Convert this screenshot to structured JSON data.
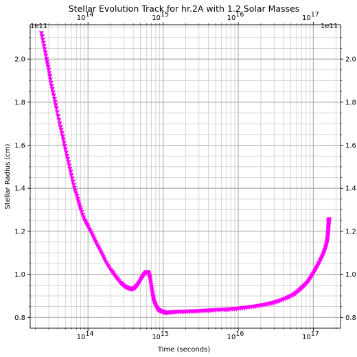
{
  "chart_data": {
    "type": "scatter",
    "title": "Stellar Evolution Track for hr.2A with 1.2 Solar Masses",
    "xlabel": "Time (seconds)",
    "ylabel": "Stellar Radius (cm)",
    "x_scale": "log",
    "xlim": [
      17000000000000.0,
      2.3e+17
    ],
    "ylim": [
      0.75,
      2.16
    ],
    "y_multiplier_label": "1e11",
    "x_ticks": [
      {
        "value": 100000000000000.0,
        "base": "10",
        "exp": "14"
      },
      {
        "value": 1000000000000000.0,
        "base": "10",
        "exp": "15"
      },
      {
        "value": 1e+16,
        "base": "10",
        "exp": "16"
      },
      {
        "value": 1e+17,
        "base": "10",
        "exp": "17"
      }
    ],
    "y_ticks": [
      {
        "value": 0.8,
        "label": "0.8"
      },
      {
        "value": 1.0,
        "label": "1.0"
      },
      {
        "value": 1.2,
        "label": "1.2"
      },
      {
        "value": 1.4,
        "label": "1.4"
      },
      {
        "value": 1.6,
        "label": "1.6"
      },
      {
        "value": 1.8,
        "label": "1.8"
      },
      {
        "value": 2.0,
        "label": "2.0"
      }
    ],
    "grid": true,
    "marker": "triangle-down",
    "color": "#ff00ff",
    "series": [
      {
        "x": [
          24000000000000.0,
          26000000000000.0,
          28000000000000.0,
          30000000000000.0,
          32000000000000.0,
          35000000000000.0,
          38000000000000.0,
          42000000000000.0,
          46000000000000.0,
          50000000000000.0,
          55000000000000.0,
          60000000000000.0,
          66000000000000.0,
          73000000000000.0,
          80000000000000.0,
          90000000000000.0,
          100000000000000.0,
          115000000000000.0,
          130000000000000.0,
          150000000000000.0,
          170000000000000.0,
          200000000000000.0,
          230000000000000.0,
          270000000000000.0,
          300000000000000.0,
          340000000000000.0,
          380000000000000.0,
          420000000000000.0,
          460000000000000.0,
          500000000000000.0,
          540000000000000.0,
          580000000000000.0,
          610000000000000.0,
          640000000000000.0,
          670000000000000.0,
          700000000000000.0,
          730000000000000.0,
          760000000000000.0,
          800000000000000.0,
          850000000000000.0,
          900000000000000.0,
          1000000000000000.0,
          1100000000000000.0,
          1300000000000000.0,
          1600000000000000.0,
          2000000000000000.0,
          2500000000000000.0,
          3200000000000000.0,
          4000000000000000.0,
          5000000000000000.0,
          6500000000000000.0,
          8000000000000000.0,
          1e+16,
          1.3e+16,
          1.7e+16,
          2.2e+16,
          2.8e+16,
          3.5e+16,
          4.5e+16,
          5.5e+16,
          6.5e+16,
          7.5e+16,
          8.5e+16,
          9.5e+16,
          1.05e+17,
          1.15e+17,
          1.25e+17,
          1.35e+17,
          1.45e+17,
          1.52e+17,
          1.56e+17,
          1.58e+17,
          1.6e+17,
          1.61e+17,
          1.62e+17
        ],
        "y": [
          2.12,
          2.06,
          2.0,
          1.95,
          1.89,
          1.83,
          1.77,
          1.7,
          1.64,
          1.58,
          1.52,
          1.46,
          1.4,
          1.35,
          1.3,
          1.25,
          1.22,
          1.18,
          1.14,
          1.1,
          1.06,
          1.02,
          0.99,
          0.96,
          0.945,
          0.935,
          0.93,
          0.935,
          0.95,
          0.97,
          0.99,
          1.005,
          1.01,
          1.005,
          0.98,
          0.94,
          0.9,
          0.87,
          0.85,
          0.835,
          0.83,
          0.825,
          0.82,
          0.823,
          0.825,
          0.826,
          0.827,
          0.829,
          0.831,
          0.833,
          0.835,
          0.837,
          0.84,
          0.845,
          0.85,
          0.857,
          0.865,
          0.875,
          0.89,
          0.905,
          0.925,
          0.945,
          0.965,
          0.99,
          1.015,
          1.04,
          1.065,
          1.09,
          1.12,
          1.15,
          1.18,
          1.21,
          1.235,
          1.25,
          1.255
        ]
      }
    ]
  }
}
